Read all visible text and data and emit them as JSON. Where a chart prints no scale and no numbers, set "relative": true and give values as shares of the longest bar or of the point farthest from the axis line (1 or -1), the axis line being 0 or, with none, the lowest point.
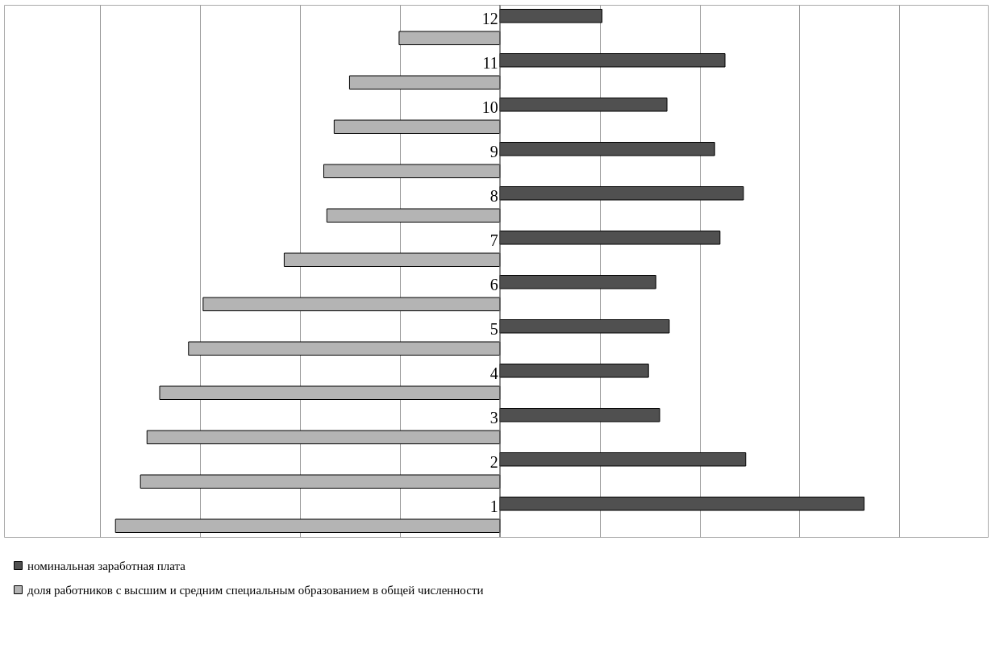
{
  "chart_data": {
    "type": "bar",
    "orientation": "horizontal",
    "relative": true,
    "categories": [
      "12",
      "11",
      "10",
      "9",
      "8",
      "7",
      "6",
      "5",
      "4",
      "3",
      "2",
      "1"
    ],
    "series": [
      {
        "name": "номинальная заработная плата",
        "color": "#505050",
        "values": [
          0.266,
          0.586,
          0.435,
          0.559,
          0.634,
          0.573,
          0.406,
          0.441,
          0.387,
          0.416,
          0.64,
          0.948
        ]
      },
      {
        "name": "доля работников с высшим и средним специальным образованием в общей численности",
        "color": "#b4b4b4",
        "values": [
          -0.262,
          -0.391,
          -0.431,
          -0.458,
          -0.45,
          -0.561,
          -0.772,
          -0.81,
          -0.885,
          -0.918,
          -0.935,
          -1.0
        ]
      }
    ],
    "grid": "x",
    "legend": "bottom"
  }
}
